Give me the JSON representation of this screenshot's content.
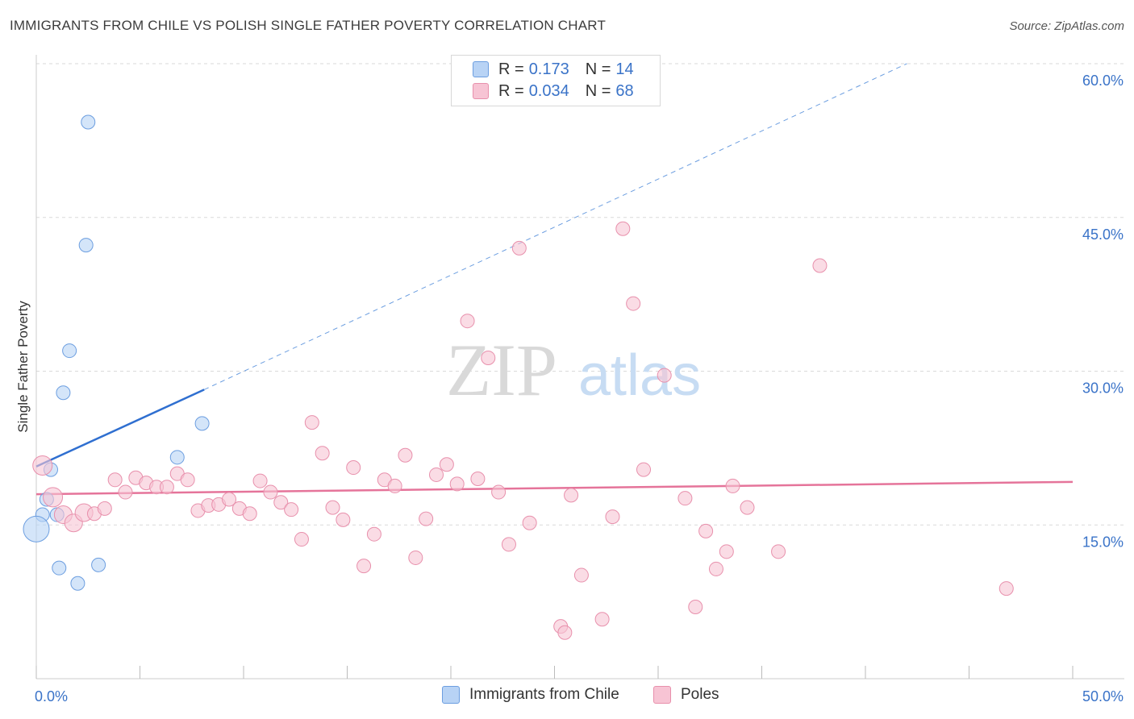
{
  "header": {
    "title": "IMMIGRANTS FROM CHILE VS POLISH SINGLE FATHER POVERTY CORRELATION CHART",
    "source": "Source: ZipAtlas.com"
  },
  "legend_top": {
    "rows": [
      {
        "r_label": "R =",
        "r_value": "0.173",
        "n_label": "N =",
        "n_value": "14"
      },
      {
        "r_label": "R =",
        "r_value": "0.034",
        "n_label": "N =",
        "n_value": "68"
      }
    ]
  },
  "legend_bottom": {
    "items": [
      {
        "label": "Immigrants from Chile"
      },
      {
        "label": "Poles"
      }
    ]
  },
  "watermark": {
    "zip": "ZIP",
    "atlas": "atlas"
  },
  "colors": {
    "blue_fill": "#b8d3f5",
    "blue_stroke": "#6c9ee0",
    "blue_line": "#2f6fd0",
    "pink_fill": "#f7c4d4",
    "pink_stroke": "#e890ac",
    "pink_line": "#e5749a",
    "tick_text": "#3a73c8",
    "grid": "#d9d9d9"
  },
  "chart_data": {
    "type": "scatter",
    "title": "IMMIGRANTS FROM CHILE VS POLISH SINGLE FATHER POVERTY CORRELATION CHART",
    "xlabel": "",
    "ylabel": "Single Father Poverty",
    "xlim": [
      0,
      50
    ],
    "ylim": [
      0,
      60
    ],
    "x_tick_labels": [
      "0.0%",
      "50.0%"
    ],
    "y_ticks": [
      15,
      30,
      45,
      60
    ],
    "y_tick_labels": [
      "15.0%",
      "30.0%",
      "45.0%",
      "60.0%"
    ],
    "grid": true,
    "series": [
      {
        "name": "Immigrants from Chile",
        "color": "#b8d3f5",
        "points": [
          [
            2.5,
            54.3
          ],
          [
            2.4,
            42.3
          ],
          [
            1.6,
            32.0
          ],
          [
            1.3,
            27.9
          ],
          [
            8.0,
            24.9
          ],
          [
            0.7,
            20.4
          ],
          [
            6.8,
            21.6
          ],
          [
            0.5,
            17.5
          ],
          [
            0.3,
            16.0
          ],
          [
            1.0,
            16.0
          ],
          [
            0.0,
            14.6
          ],
          [
            1.1,
            10.8
          ],
          [
            3.0,
            11.1
          ],
          [
            2.0,
            9.3
          ]
        ],
        "trend": {
          "x": [
            0,
            8.1
          ],
          "y": [
            20.7,
            28.2
          ],
          "extended": {
            "x": [
              8.1,
              42
            ],
            "y": [
              28.2,
              60
            ]
          }
        }
      },
      {
        "name": "Poles",
        "color": "#f7c4d4",
        "points": [
          [
            0.3,
            20.8
          ],
          [
            0.8,
            17.7
          ],
          [
            1.3,
            16.0
          ],
          [
            1.8,
            15.2
          ],
          [
            2.3,
            16.2
          ],
          [
            2.8,
            16.1
          ],
          [
            3.3,
            16.6
          ],
          [
            3.8,
            19.4
          ],
          [
            4.3,
            18.2
          ],
          [
            4.8,
            19.6
          ],
          [
            5.3,
            19.1
          ],
          [
            5.8,
            18.7
          ],
          [
            6.3,
            18.7
          ],
          [
            6.8,
            20.0
          ],
          [
            7.3,
            19.4
          ],
          [
            7.8,
            16.4
          ],
          [
            8.3,
            16.9
          ],
          [
            8.8,
            17.0
          ],
          [
            9.3,
            17.5
          ],
          [
            9.8,
            16.6
          ],
          [
            10.3,
            16.1
          ],
          [
            10.8,
            19.3
          ],
          [
            11.3,
            18.2
          ],
          [
            11.8,
            17.2
          ],
          [
            12.3,
            16.5
          ],
          [
            12.8,
            13.6
          ],
          [
            13.3,
            25.0
          ],
          [
            13.8,
            22.0
          ],
          [
            14.3,
            16.7
          ],
          [
            14.8,
            15.5
          ],
          [
            15.3,
            20.6
          ],
          [
            15.8,
            11.0
          ],
          [
            16.3,
            14.1
          ],
          [
            16.8,
            19.4
          ],
          [
            17.3,
            18.8
          ],
          [
            17.8,
            21.8
          ],
          [
            18.3,
            11.8
          ],
          [
            18.8,
            15.6
          ],
          [
            19.3,
            19.9
          ],
          [
            19.8,
            20.9
          ],
          [
            20.3,
            19.0
          ],
          [
            20.8,
            34.9
          ],
          [
            21.3,
            19.5
          ],
          [
            21.8,
            31.3
          ],
          [
            22.3,
            18.2
          ],
          [
            22.8,
            13.1
          ],
          [
            23.3,
            42.0
          ],
          [
            23.8,
            15.2
          ],
          [
            25.3,
            5.1
          ],
          [
            25.5,
            4.5
          ],
          [
            25.8,
            17.9
          ],
          [
            26.3,
            10.1
          ],
          [
            27.3,
            5.8
          ],
          [
            27.8,
            15.8
          ],
          [
            28.3,
            43.9
          ],
          [
            28.8,
            36.6
          ],
          [
            29.3,
            20.4
          ],
          [
            30.3,
            29.6
          ],
          [
            31.3,
            17.6
          ],
          [
            31.8,
            7.0
          ],
          [
            32.3,
            14.4
          ],
          [
            32.8,
            10.7
          ],
          [
            33.3,
            12.4
          ],
          [
            33.6,
            18.8
          ],
          [
            34.3,
            16.7
          ],
          [
            35.8,
            12.4
          ],
          [
            37.8,
            40.3
          ],
          [
            46.8,
            8.8
          ]
        ],
        "trend": {
          "x": [
            0,
            50
          ],
          "y": [
            18.0,
            19.2
          ]
        }
      }
    ]
  }
}
